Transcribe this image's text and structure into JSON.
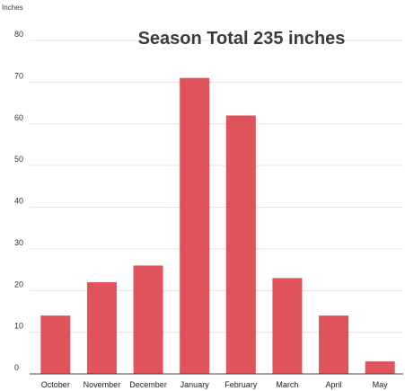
{
  "chart_data": {
    "type": "bar",
    "title": "Season Total 235 inches",
    "ylabel": "Inches",
    "xlabel": "",
    "categories": [
      "October",
      "November",
      "December",
      "January",
      "February",
      "March",
      "April",
      "May"
    ],
    "values": [
      14,
      22,
      26,
      71,
      62,
      23,
      14,
      3
    ],
    "ylim": [
      0,
      80
    ],
    "yticks": [
      0,
      10,
      20,
      30,
      40,
      50,
      60,
      70,
      80
    ],
    "grid": true,
    "bar_color": "#e0535a",
    "grid_color": "#e6e6e6"
  }
}
